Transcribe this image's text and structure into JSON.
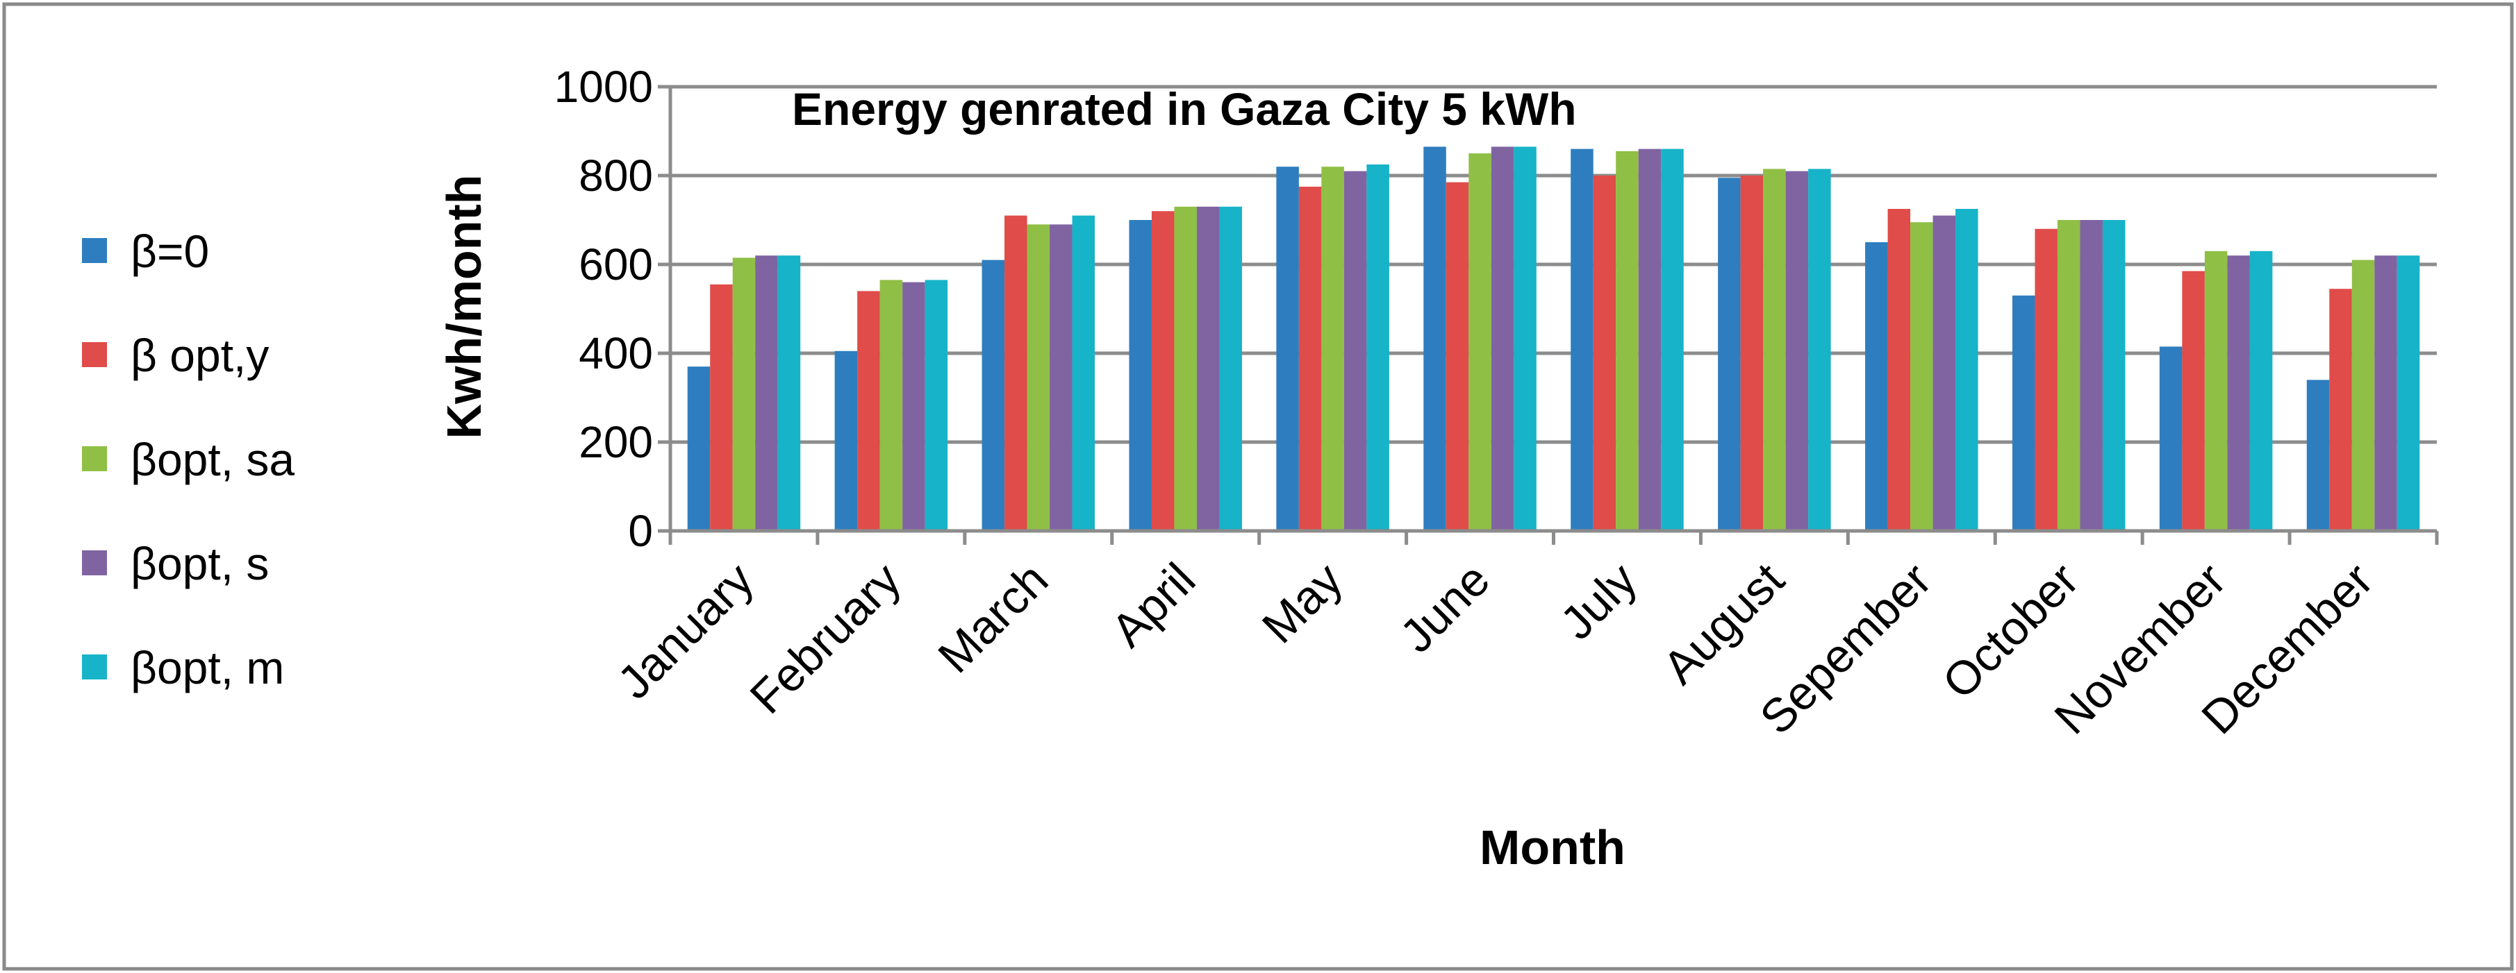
{
  "chart_data": {
    "type": "bar",
    "title": "Energy genrated in Gaza City 5 kWh",
    "xlabel": "Month",
    "ylabel": "Kwh/month",
    "ylim": [
      0,
      1000
    ],
    "yticks": [
      "0",
      "200",
      "400",
      "600",
      "800",
      "1000"
    ],
    "ytick_values": [
      0,
      200,
      400,
      600,
      800,
      1000
    ],
    "grid": true,
    "legend_position": "left",
    "categories": [
      "January",
      "February",
      "March",
      "April",
      "May",
      "June",
      "July",
      "August",
      "Sepember",
      "October",
      "November",
      "December"
    ],
    "series": [
      {
        "name": "β=0",
        "color": "#2e7ebf",
        "values": [
          370,
          405,
          610,
          700,
          820,
          865,
          860,
          795,
          650,
          530,
          415,
          340
        ]
      },
      {
        "name": "β opt,y",
        "color": "#e04c4a",
        "values": [
          555,
          540,
          710,
          720,
          775,
          785,
          800,
          800,
          725,
          680,
          585,
          545
        ]
      },
      {
        "name": "βopt, sa",
        "color": "#8fbf45",
        "values": [
          615,
          565,
          690,
          730,
          820,
          850,
          855,
          815,
          695,
          700,
          630,
          610
        ]
      },
      {
        "name": "βopt, s",
        "color": "#8064a2",
        "values": [
          620,
          560,
          690,
          730,
          810,
          865,
          860,
          810,
          710,
          700,
          620,
          620
        ]
      },
      {
        "name": "βopt, m",
        "color": "#17b3c8",
        "values": [
          620,
          565,
          710,
          730,
          825,
          865,
          860,
          815,
          725,
          700,
          630,
          620
        ]
      }
    ]
  }
}
